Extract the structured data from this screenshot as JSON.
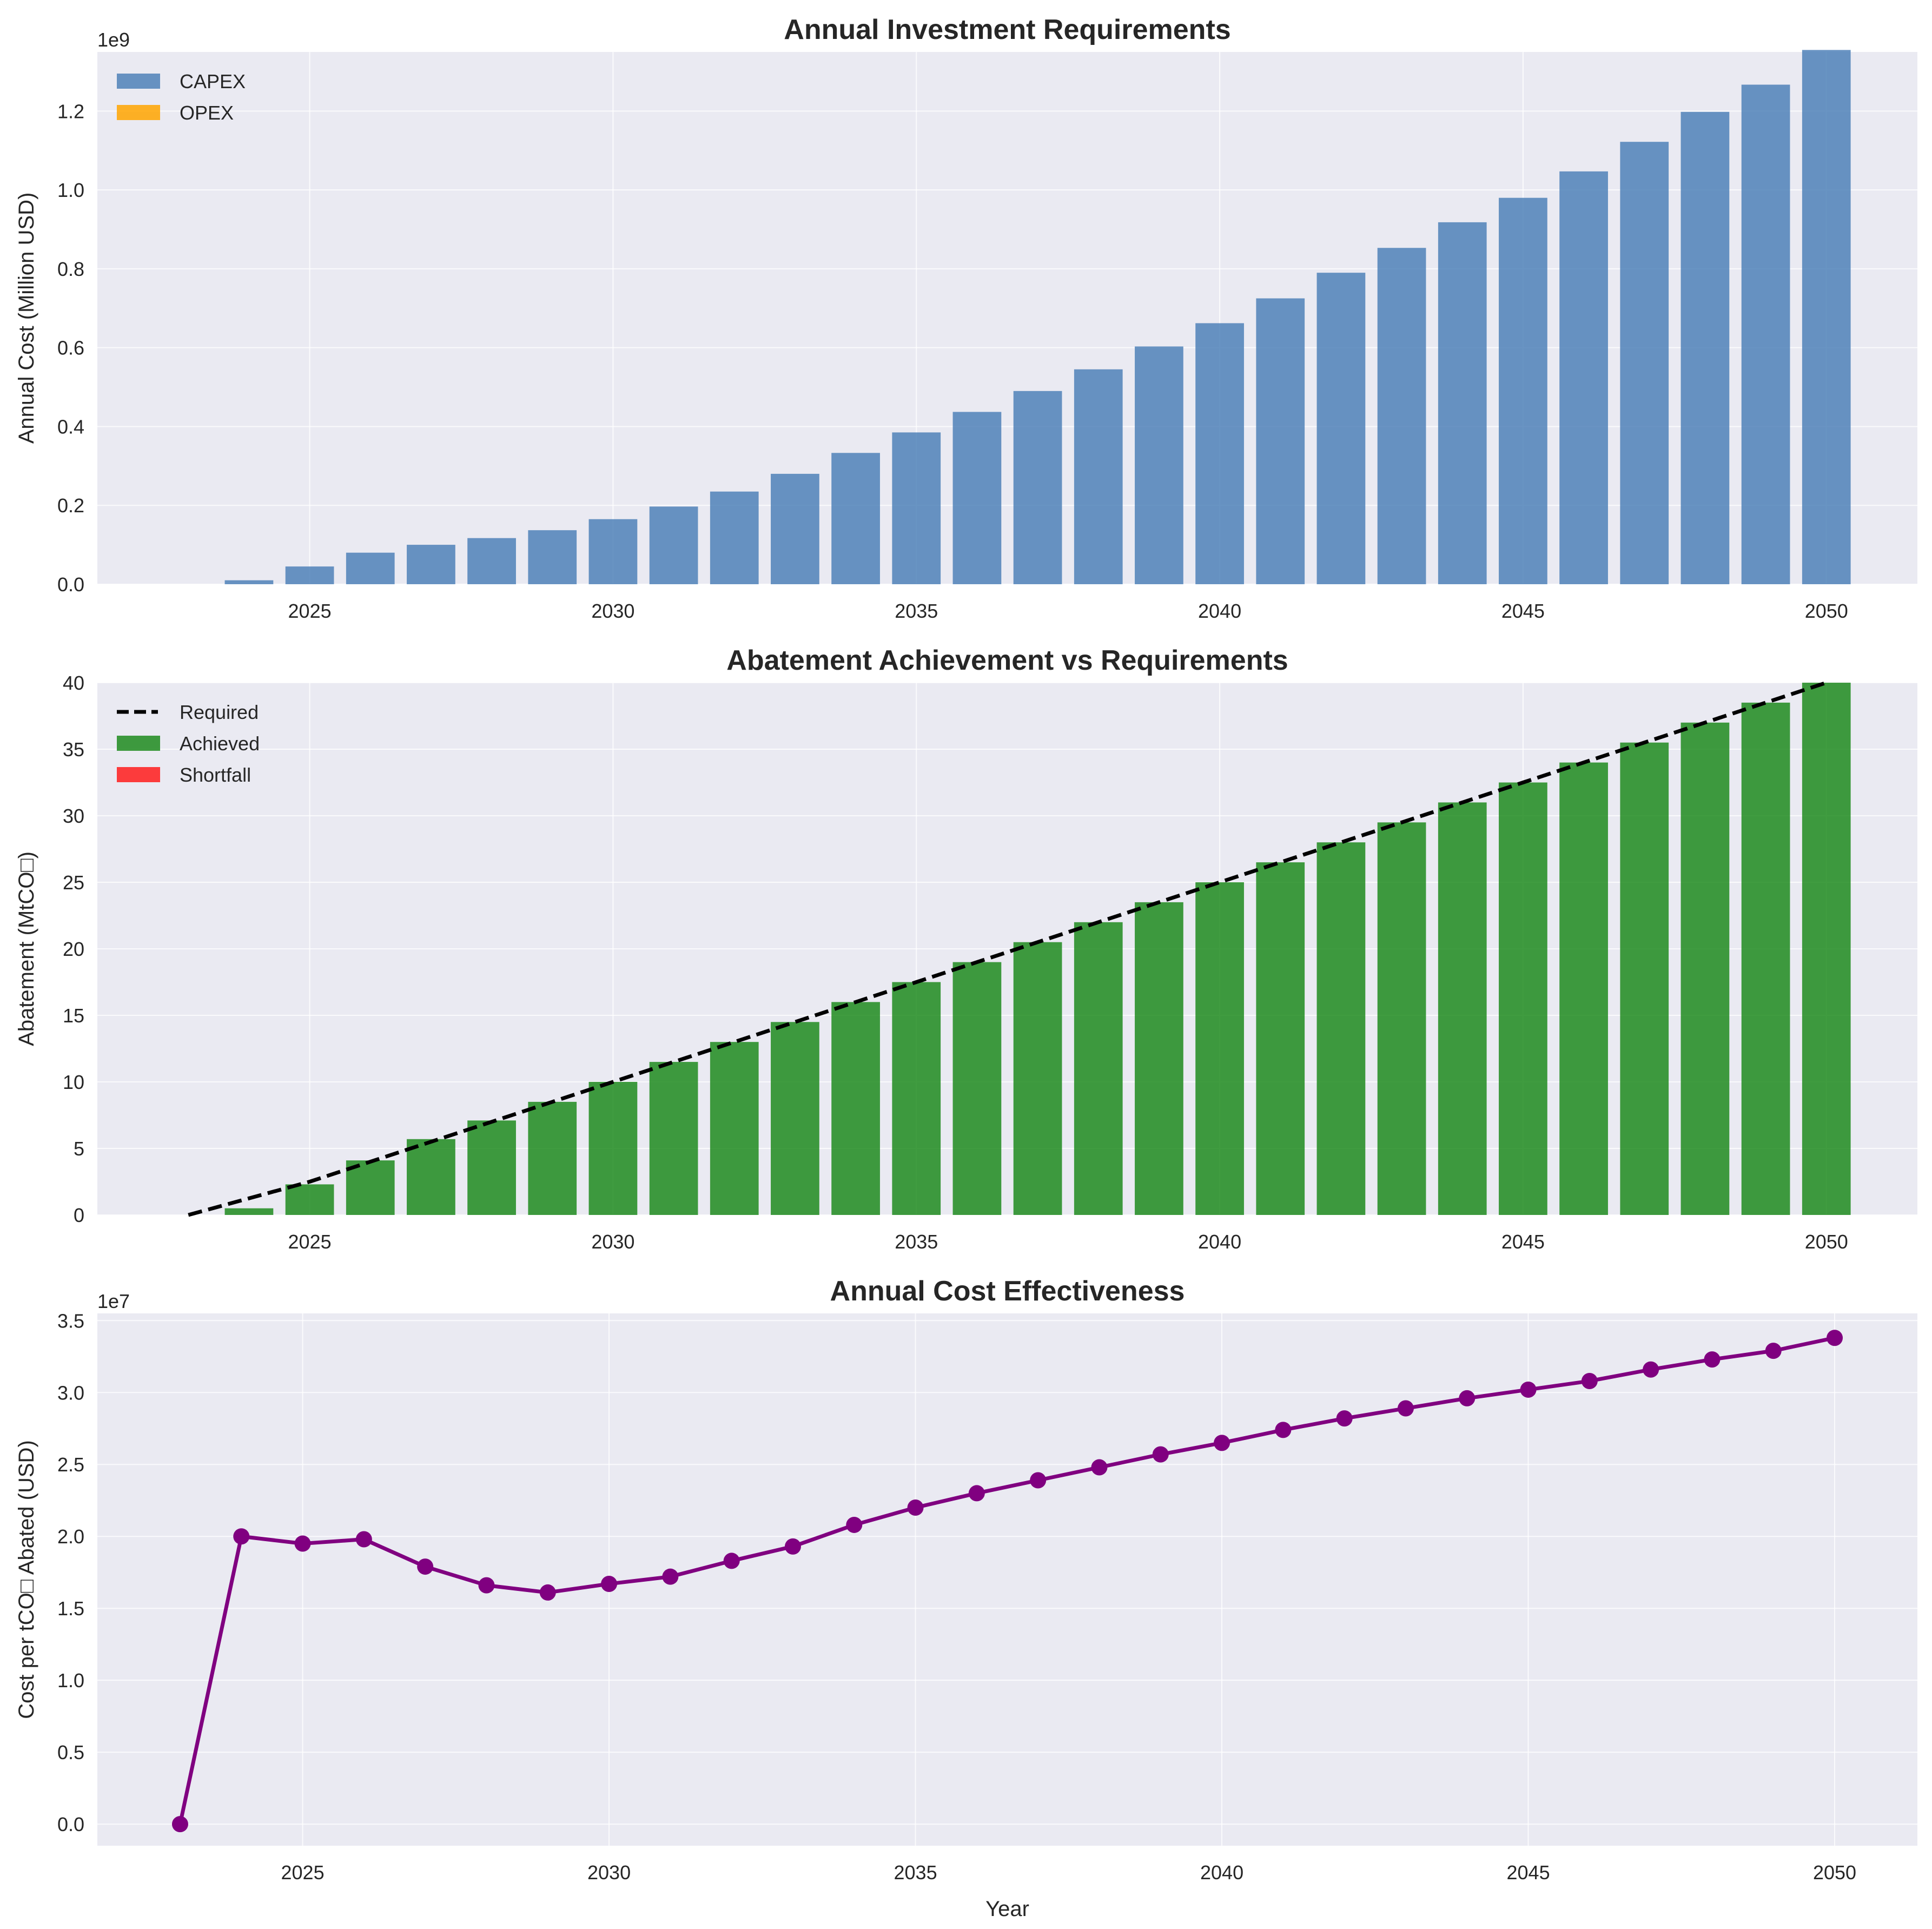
{
  "colors": {
    "plot_bg": "#eaeaf2",
    "grid": "#ffffff",
    "text": "#262626",
    "capex": "#4f81b8",
    "opex": "#ffa500",
    "achieved": "#1f8b1f",
    "shortfall": "#ff1c1c",
    "required_line": "#000000",
    "cost_line": "#800080"
  },
  "chart_data": [
    {
      "type": "bar",
      "title": "Annual Investment Requirements",
      "xlabel": "",
      "ylabel": "Annual Cost (Million USD)",
      "offset_label": "1e9",
      "ylim": [
        0,
        1.35
      ],
      "xlim": [
        2021.5,
        2051.5
      ],
      "x_ticks": [
        2025,
        2030,
        2035,
        2040,
        2045,
        2050
      ],
      "x_tick_labels": [
        "2025",
        "2030",
        "2035",
        "2040",
        "2045",
        "2050"
      ],
      "y_ticks": [
        0,
        0.2,
        0.4,
        0.6,
        0.8,
        1.0,
        1.2
      ],
      "y_tick_labels": [
        "0.0",
        "0.2",
        "0.4",
        "0.6",
        "0.8",
        "1.0",
        "1.2"
      ],
      "grid": true,
      "legend_position": "upper-left",
      "categories": [
        2023,
        2024,
        2025,
        2026,
        2027,
        2028,
        2029,
        2030,
        2031,
        2032,
        2033,
        2034,
        2035,
        2036,
        2037,
        2038,
        2039,
        2040,
        2041,
        2042,
        2043,
        2044,
        2045,
        2046,
        2047,
        2048,
        2049,
        2050
      ],
      "series": [
        {
          "name": "CAPEX",
          "color_key": "capex",
          "values": [
            0,
            0.01,
            0.045,
            0.08,
            0.1,
            0.117,
            0.137,
            0.165,
            0.197,
            0.235,
            0.28,
            0.333,
            0.385,
            0.437,
            0.49,
            0.545,
            0.603,
            0.662,
            0.725,
            0.79,
            0.853,
            0.918,
            0.98,
            1.047,
            1.122,
            1.198,
            1.267,
            1.355
          ]
        },
        {
          "name": "OPEX",
          "color_key": "opex",
          "values": [
            0,
            0,
            0,
            0,
            0,
            0,
            0,
            0,
            0,
            0,
            0,
            0,
            0,
            0,
            0,
            0,
            0,
            0,
            0,
            0,
            0,
            0,
            0,
            0,
            0,
            0,
            0,
            0
          ]
        }
      ]
    },
    {
      "type": "bar",
      "title": "Abatement Achievement vs Requirements",
      "xlabel": "",
      "ylabel": "Abatement (MtCO□)",
      "ylim": [
        0,
        40
      ],
      "xlim": [
        2021.5,
        2051.5
      ],
      "x_ticks": [
        2025,
        2030,
        2035,
        2040,
        2045,
        2050
      ],
      "x_tick_labels": [
        "2025",
        "2030",
        "2035",
        "2040",
        "2045",
        "2050"
      ],
      "y_ticks": [
        0,
        5,
        10,
        15,
        20,
        25,
        30,
        35,
        40
      ],
      "y_tick_labels": [
        "0",
        "5",
        "10",
        "15",
        "20",
        "25",
        "30",
        "35",
        "40"
      ],
      "grid": true,
      "legend_position": "upper-left",
      "categories": [
        2023,
        2024,
        2025,
        2026,
        2027,
        2028,
        2029,
        2030,
        2031,
        2032,
        2033,
        2034,
        2035,
        2036,
        2037,
        2038,
        2039,
        2040,
        2041,
        2042,
        2043,
        2044,
        2045,
        2046,
        2047,
        2048,
        2049,
        2050
      ],
      "series": [
        {
          "name": "Required",
          "kind": "line",
          "style": "dashed",
          "color_key": "required_line",
          "values": [
            0,
            1.25,
            2.5,
            4.0,
            5.5,
            7.0,
            8.5,
            10.0,
            11.5,
            13.0,
            14.5,
            16.0,
            17.5,
            19.0,
            20.5,
            22.0,
            23.5,
            25.0,
            26.5,
            28.0,
            29.5,
            31.0,
            32.5,
            34.0,
            35.5,
            37.0,
            38.5,
            40.0
          ]
        },
        {
          "name": "Achieved",
          "kind": "bar",
          "color_key": "achieved",
          "values": [
            0,
            0.5,
            2.3,
            4.1,
            5.7,
            7.1,
            8.5,
            10.0,
            11.5,
            13.0,
            14.5,
            16.0,
            17.5,
            19.0,
            20.5,
            22.0,
            23.5,
            25.0,
            26.5,
            28.0,
            29.5,
            31.0,
            32.5,
            34.0,
            35.5,
            37.0,
            38.5,
            40.0
          ]
        },
        {
          "name": "Shortfall",
          "kind": "bar",
          "color_key": "shortfall",
          "values": [
            0,
            0,
            0,
            0,
            0,
            0,
            0,
            0,
            0,
            0,
            0,
            0,
            0,
            0,
            0,
            0,
            0,
            0,
            0,
            0,
            0,
            0,
            0,
            0,
            0,
            0,
            0,
            0
          ]
        }
      ]
    },
    {
      "type": "line",
      "title": "Annual Cost Effectiveness",
      "xlabel": "Year",
      "ylabel": "Cost per tCO□ Abated (USD)",
      "offset_label": "1e7",
      "ylim": [
        -0.15,
        3.55
      ],
      "xlim": [
        2021.65,
        2051.35
      ],
      "x_ticks": [
        2025,
        2030,
        2035,
        2040,
        2045,
        2050
      ],
      "x_tick_labels": [
        "2025",
        "2030",
        "2035",
        "2040",
        "2045",
        "2050"
      ],
      "y_ticks": [
        0,
        0.5,
        1.0,
        1.5,
        2.0,
        2.5,
        3.0,
        3.5
      ],
      "y_tick_labels": [
        "0.0",
        "0.5",
        "1.0",
        "1.5",
        "2.0",
        "2.5",
        "3.0",
        "3.5"
      ],
      "grid": true,
      "x": [
        2023,
        2024,
        2025,
        2026,
        2027,
        2028,
        2029,
        2030,
        2031,
        2032,
        2033,
        2034,
        2035,
        2036,
        2037,
        2038,
        2039,
        2040,
        2041,
        2042,
        2043,
        2044,
        2045,
        2046,
        2047,
        2048,
        2049,
        2050
      ],
      "series": [
        {
          "color_key": "cost_line",
          "values": [
            0,
            2.0,
            1.95,
            1.98,
            1.79,
            1.66,
            1.61,
            1.67,
            1.72,
            1.83,
            1.93,
            2.08,
            2.2,
            2.3,
            2.39,
            2.48,
            2.57,
            2.65,
            2.74,
            2.82,
            2.89,
            2.96,
            3.02,
            3.08,
            3.16,
            3.23,
            3.29,
            3.38
          ]
        }
      ]
    }
  ]
}
